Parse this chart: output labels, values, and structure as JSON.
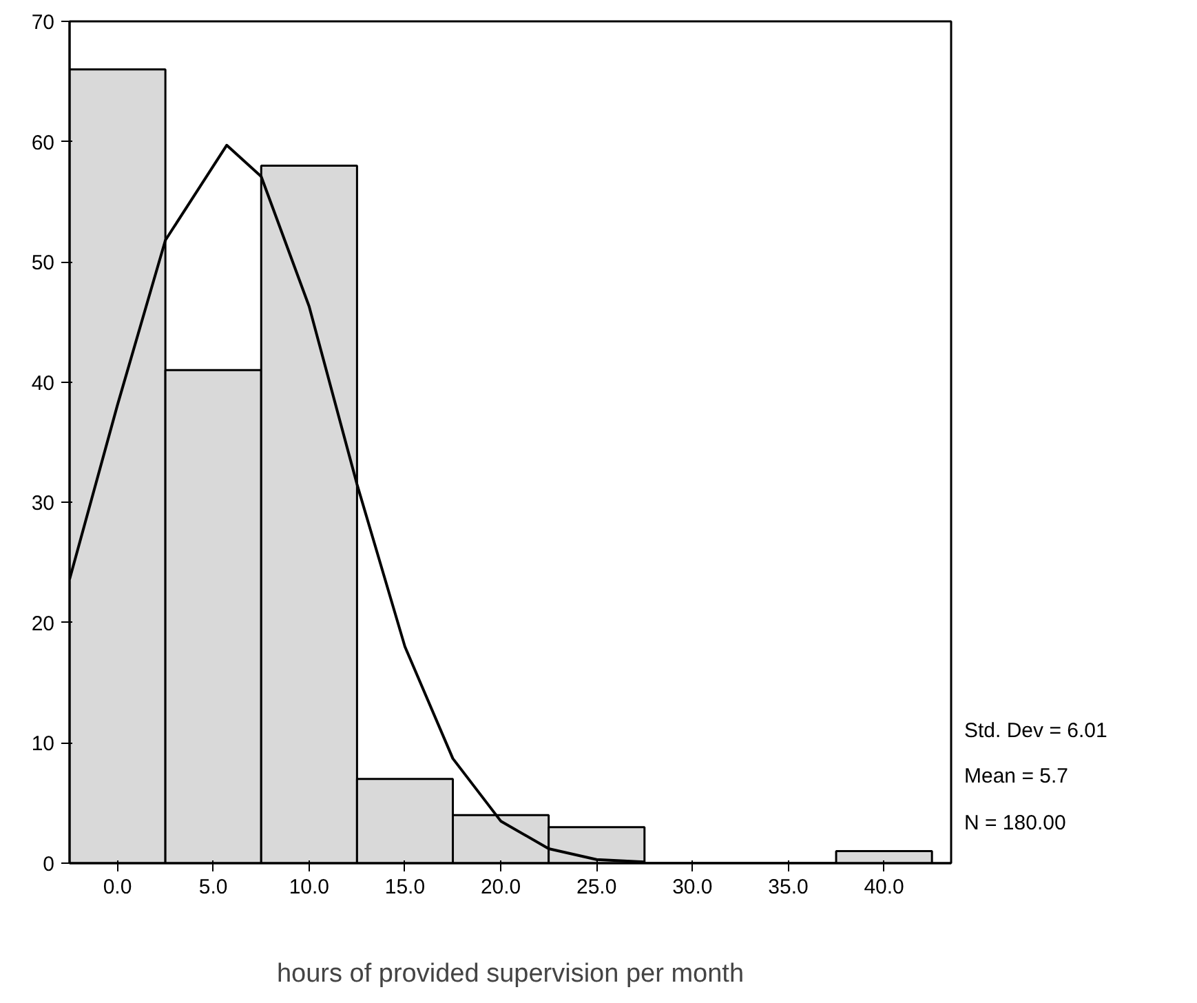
{
  "chart_data": {
    "type": "histogram",
    "xlabel": "hours of provided supervision per month",
    "bins": [
      -2.5,
      2.5,
      7.5,
      12.5,
      17.5,
      22.5,
      27.5,
      32.5,
      37.5,
      42.5
    ],
    "values": [
      66,
      41,
      58,
      7,
      4,
      3,
      0,
      0,
      1
    ],
    "color": "#d9d9d9",
    "series": [
      {
        "type": "line",
        "color": "#000000",
        "x": [
          -2.5,
          0,
          2.5,
          5.7,
          7.5,
          10,
          12.5,
          15,
          17.5,
          20,
          22.5,
          25,
          27.5
        ],
        "values": [
          23.6,
          38.1,
          51.8,
          59.7,
          57.1,
          46.3,
          31.5,
          18.0,
          8.7,
          3.5,
          1.2,
          0.3,
          0.1
        ]
      }
    ],
    "xlim": [
      -2.5,
      43.5
    ],
    "ylim": [
      0,
      70
    ],
    "xticks": [
      {
        "value": 0,
        "label": "0.0"
      },
      {
        "value": 5,
        "label": "5.0"
      },
      {
        "value": 10,
        "label": "10.0"
      },
      {
        "value": 15,
        "label": "15.0"
      },
      {
        "value": 20,
        "label": "20.0"
      },
      {
        "value": 25,
        "label": "25.0"
      },
      {
        "value": 30,
        "label": "30.0"
      },
      {
        "value": 35,
        "label": "35.0"
      },
      {
        "value": 40,
        "label": "40.0"
      }
    ],
    "yticks": [
      0,
      10,
      20,
      30,
      40,
      50,
      60,
      70
    ],
    "annotations": [
      "Std. Dev = 6.01",
      "Mean = 5.7",
      "N = 180.00"
    ]
  }
}
